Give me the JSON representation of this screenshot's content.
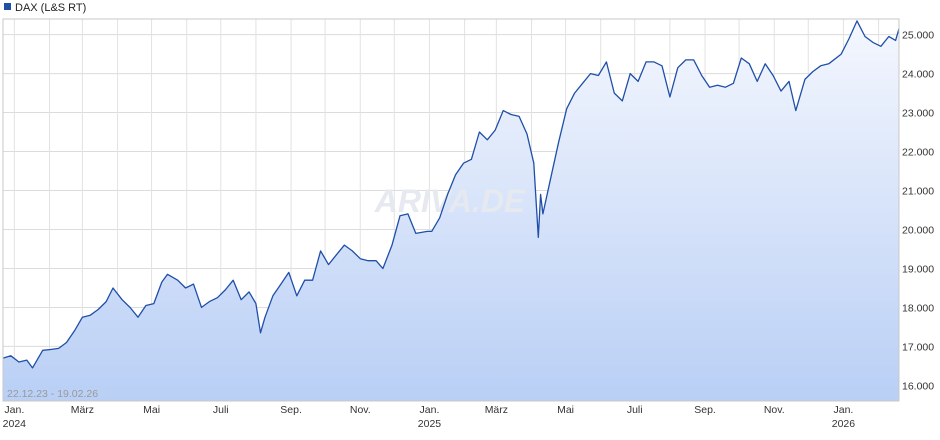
{
  "chart_data": {
    "type": "area",
    "legend": {
      "label": "DAX (L&S RT)",
      "color": "#1f4fa8",
      "placement": "top-left"
    },
    "date_range_label": "22.12.23 - 19.02.26",
    "watermark": "ARIVA.DE",
    "y_ticks": [
      "16.000",
      "17.000",
      "18.000",
      "19.000",
      "20.000",
      "21.000",
      "22.000",
      "23.000",
      "24.000",
      "25.000"
    ],
    "y_tick_values": [
      16000,
      17000,
      18000,
      19000,
      20000,
      21000,
      22000,
      23000,
      24000,
      25000
    ],
    "ylim": [
      15600,
      25400
    ],
    "x_ticks": [
      {
        "month": "Jan.",
        "year": "2024",
        "date": "2024-01-01"
      },
      {
        "month": "März",
        "year": "",
        "date": "2024-03-01"
      },
      {
        "month": "Mai",
        "year": "",
        "date": "2024-05-01"
      },
      {
        "month": "Juli",
        "year": "",
        "date": "2024-07-01"
      },
      {
        "month": "Sep.",
        "year": "",
        "date": "2024-09-01"
      },
      {
        "month": "Nov.",
        "year": "",
        "date": "2024-11-01"
      },
      {
        "month": "Jan.",
        "year": "2025",
        "date": "2025-01-01"
      },
      {
        "month": "März",
        "year": "",
        "date": "2025-03-01"
      },
      {
        "month": "Mai",
        "year": "",
        "date": "2025-05-01"
      },
      {
        "month": "Juli",
        "year": "",
        "date": "2025-07-01"
      },
      {
        "month": "Sep.",
        "year": "",
        "date": "2025-09-01"
      },
      {
        "month": "Nov.",
        "year": "",
        "date": "2025-11-01"
      },
      {
        "month": "Jan.",
        "year": "2026",
        "date": "2026-01-01"
      }
    ],
    "xlim": [
      "2023-12-22",
      "2026-02-19"
    ],
    "grid": true,
    "series": [
      {
        "name": "DAX (L&S RT)",
        "color": "#1f4fa8",
        "points": [
          [
            "2023-12-22",
            16700
          ],
          [
            "2023-12-29",
            16760
          ],
          [
            "2024-01-05",
            16600
          ],
          [
            "2024-01-12",
            16650
          ],
          [
            "2024-01-17",
            16450
          ],
          [
            "2024-01-26",
            16900
          ],
          [
            "2024-02-02",
            16920
          ],
          [
            "2024-02-09",
            16950
          ],
          [
            "2024-02-16",
            17100
          ],
          [
            "2024-02-23",
            17400
          ],
          [
            "2024-03-01",
            17750
          ],
          [
            "2024-03-08",
            17800
          ],
          [
            "2024-03-15",
            17950
          ],
          [
            "2024-03-22",
            18150
          ],
          [
            "2024-03-28",
            18500
          ],
          [
            "2024-04-05",
            18200
          ],
          [
            "2024-04-12",
            18000
          ],
          [
            "2024-04-19",
            17750
          ],
          [
            "2024-04-26",
            18050
          ],
          [
            "2024-05-03",
            18100
          ],
          [
            "2024-05-10",
            18650
          ],
          [
            "2024-05-15",
            18850
          ],
          [
            "2024-05-24",
            18700
          ],
          [
            "2024-05-31",
            18500
          ],
          [
            "2024-06-07",
            18600
          ],
          [
            "2024-06-14",
            18000
          ],
          [
            "2024-06-21",
            18150
          ],
          [
            "2024-06-28",
            18250
          ],
          [
            "2024-07-05",
            18450
          ],
          [
            "2024-07-12",
            18700
          ],
          [
            "2024-07-19",
            18200
          ],
          [
            "2024-07-26",
            18400
          ],
          [
            "2024-08-01",
            18100
          ],
          [
            "2024-08-05",
            17350
          ],
          [
            "2024-08-09",
            17750
          ],
          [
            "2024-08-16",
            18300
          ],
          [
            "2024-08-23",
            18600
          ],
          [
            "2024-08-30",
            18900
          ],
          [
            "2024-09-06",
            18300
          ],
          [
            "2024-09-13",
            18700
          ],
          [
            "2024-09-20",
            18700
          ],
          [
            "2024-09-27",
            19450
          ],
          [
            "2024-10-04",
            19100
          ],
          [
            "2024-10-11",
            19350
          ],
          [
            "2024-10-18",
            19600
          ],
          [
            "2024-10-25",
            19450
          ],
          [
            "2024-11-01",
            19250
          ],
          [
            "2024-11-08",
            19200
          ],
          [
            "2024-11-15",
            19200
          ],
          [
            "2024-11-21",
            19000
          ],
          [
            "2024-11-29",
            19600
          ],
          [
            "2024-12-06",
            20350
          ],
          [
            "2024-12-13",
            20400
          ],
          [
            "2024-12-20",
            19900
          ],
          [
            "2024-12-30",
            19950
          ],
          [
            "2025-01-03",
            19950
          ],
          [
            "2025-01-10",
            20300
          ],
          [
            "2025-01-17",
            20900
          ],
          [
            "2025-01-24",
            21400
          ],
          [
            "2025-01-31",
            21700
          ],
          [
            "2025-02-07",
            21800
          ],
          [
            "2025-02-14",
            22500
          ],
          [
            "2025-02-21",
            22300
          ],
          [
            "2025-02-28",
            22550
          ],
          [
            "2025-03-07",
            23050
          ],
          [
            "2025-03-14",
            22950
          ],
          [
            "2025-03-21",
            22900
          ],
          [
            "2025-03-28",
            22450
          ],
          [
            "2025-04-03",
            21700
          ],
          [
            "2025-04-07",
            19800
          ],
          [
            "2025-04-09",
            20900
          ],
          [
            "2025-04-11",
            20400
          ],
          [
            "2025-04-17",
            21200
          ],
          [
            "2025-04-25",
            22250
          ],
          [
            "2025-05-02",
            23100
          ],
          [
            "2025-05-09",
            23500
          ],
          [
            "2025-05-16",
            23750
          ],
          [
            "2025-05-23",
            24000
          ],
          [
            "2025-05-30",
            23950
          ],
          [
            "2025-06-06",
            24300
          ],
          [
            "2025-06-13",
            23500
          ],
          [
            "2025-06-20",
            23300
          ],
          [
            "2025-06-27",
            24000
          ],
          [
            "2025-07-04",
            23800
          ],
          [
            "2025-07-11",
            24300
          ],
          [
            "2025-07-18",
            24300
          ],
          [
            "2025-07-25",
            24200
          ],
          [
            "2025-08-01",
            23400
          ],
          [
            "2025-08-08",
            24150
          ],
          [
            "2025-08-15",
            24350
          ],
          [
            "2025-08-22",
            24350
          ],
          [
            "2025-08-29",
            23950
          ],
          [
            "2025-09-05",
            23650
          ],
          [
            "2025-09-12",
            23700
          ],
          [
            "2025-09-19",
            23650
          ],
          [
            "2025-09-26",
            23750
          ],
          [
            "2025-10-03",
            24400
          ],
          [
            "2025-10-10",
            24250
          ],
          [
            "2025-10-17",
            23800
          ],
          [
            "2025-10-24",
            24250
          ],
          [
            "2025-10-31",
            23950
          ],
          [
            "2025-11-07",
            23550
          ],
          [
            "2025-11-14",
            23800
          ],
          [
            "2025-11-20",
            23050
          ],
          [
            "2025-11-28",
            23850
          ],
          [
            "2025-12-05",
            24050
          ],
          [
            "2025-12-12",
            24200
          ],
          [
            "2025-12-19",
            24250
          ],
          [
            "2025-12-30",
            24500
          ],
          [
            "2026-01-06",
            24900
          ],
          [
            "2026-01-13",
            25350
          ],
          [
            "2026-01-20",
            24950
          ],
          [
            "2026-01-27",
            24800
          ],
          [
            "2026-02-03",
            24700
          ],
          [
            "2026-02-10",
            24950
          ],
          [
            "2026-02-16",
            24850
          ],
          [
            "2026-02-19",
            25150
          ]
        ]
      }
    ]
  }
}
